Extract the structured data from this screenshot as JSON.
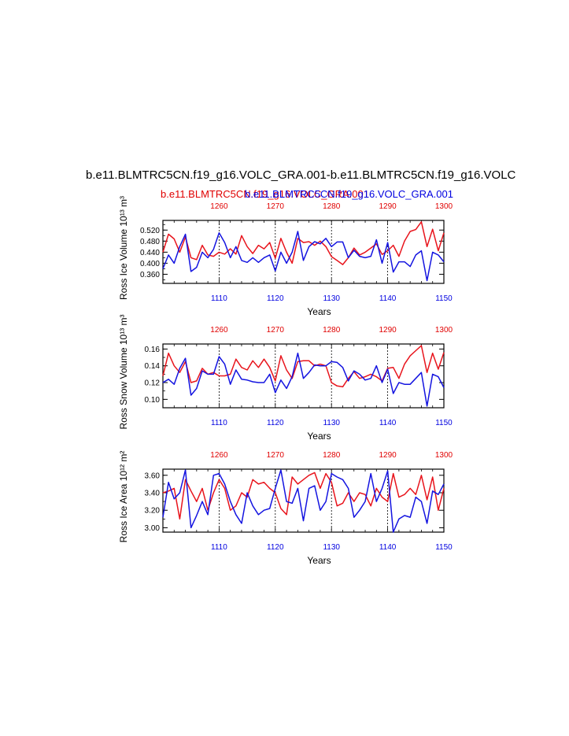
{
  "titles": {
    "main": "b.e11.BLMTRC5CN.f19_g16.VOLC_GRA.001-b.e11.BLMTRC5CN.f19_g16.VOLC",
    "left": "b.e11.BLMTRC5CN.f19_g16.VOLC_GRA.001",
    "right": "b.e11.BLMTRC5CN.f19_g16.VOLC_GRA.001"
  },
  "colors": {
    "red": "#e8141c",
    "blue": "#1414e0"
  },
  "chart_data": [
    {
      "type": "line",
      "ylabel": "Ross Ice Volume 10¹³ m³",
      "xlabel": "Years",
      "ylim": [
        0.327,
        0.555
      ],
      "yticks": [
        "0.360",
        "0.400",
        "0.440",
        "0.480",
        "0.520"
      ],
      "yticks_values": [
        0.36,
        0.4,
        0.44,
        0.48,
        0.52
      ],
      "top_axis": {
        "range": [
          1250,
          1300
        ],
        "ticks": [
          "1260",
          "1270",
          "1280",
          "1290",
          "1300"
        ]
      },
      "bottom_axis": {
        "range": [
          1100,
          1150
        ],
        "ticks": [
          "1110",
          "1120",
          "1130",
          "1140",
          "1150"
        ]
      },
      "series": [
        {
          "axis": "top",
          "color": "red",
          "x": [
            1250,
            1251,
            1252,
            1253,
            1254,
            1255,
            1256,
            1257,
            1258,
            1259,
            1260,
            1261,
            1262,
            1263,
            1264,
            1265,
            1266,
            1267,
            1268,
            1269,
            1270,
            1271,
            1272,
            1273,
            1274,
            1275,
            1276,
            1277,
            1278,
            1279,
            1280,
            1281,
            1282,
            1283,
            1284,
            1285,
            1286,
            1287,
            1288,
            1289,
            1290,
            1291,
            1292,
            1293,
            1294,
            1295,
            1296,
            1297,
            1298,
            1299,
            1300
          ],
          "y": [
            0.44,
            0.505,
            0.488,
            0.44,
            0.495,
            0.42,
            0.413,
            0.465,
            0.43,
            0.425,
            0.44,
            0.433,
            0.452,
            0.433,
            0.5,
            0.46,
            0.435,
            0.465,
            0.452,
            0.475,
            0.418,
            0.49,
            0.44,
            0.4,
            0.49,
            0.475,
            0.478,
            0.465,
            0.48,
            0.46,
            0.424,
            0.41,
            0.395,
            0.42,
            0.455,
            0.43,
            0.44,
            0.455,
            0.47,
            0.432,
            0.445,
            0.465,
            0.425,
            0.48,
            0.515,
            0.522,
            0.55,
            0.46,
            0.523,
            0.445,
            0.51
          ]
        },
        {
          "axis": "bottom",
          "color": "blue",
          "x": [
            1100,
            1101,
            1102,
            1103,
            1104,
            1105,
            1106,
            1107,
            1108,
            1109,
            1110,
            1111,
            1112,
            1113,
            1114,
            1115,
            1116,
            1117,
            1118,
            1119,
            1120,
            1121,
            1122,
            1123,
            1124,
            1125,
            1126,
            1127,
            1128,
            1129,
            1130,
            1131,
            1132,
            1133,
            1134,
            1135,
            1136,
            1137,
            1138,
            1139,
            1140,
            1141,
            1142,
            1143,
            1144,
            1145,
            1146,
            1147,
            1148,
            1149,
            1150
          ],
          "y": [
            0.38,
            0.43,
            0.4,
            0.46,
            0.505,
            0.37,
            0.385,
            0.44,
            0.42,
            0.45,
            0.51,
            0.475,
            0.42,
            0.46,
            0.41,
            0.403,
            0.42,
            0.403,
            0.42,
            0.43,
            0.372,
            0.44,
            0.4,
            0.44,
            0.515,
            0.41,
            0.46,
            0.478,
            0.47,
            0.49,
            0.46,
            0.477,
            0.477,
            0.42,
            0.447,
            0.425,
            0.42,
            0.425,
            0.485,
            0.4,
            0.475,
            0.368,
            0.405,
            0.405,
            0.388,
            0.43,
            0.445,
            0.337,
            0.44,
            0.43,
            0.405
          ]
        }
      ]
    },
    {
      "type": "line",
      "ylabel": "Ross Snow Volume 10¹³ m³",
      "xlabel": "Years",
      "ylim": [
        0.09,
        0.166
      ],
      "yticks": [
        "0.10",
        "0.12",
        "0.14",
        "0.16"
      ],
      "yticks_values": [
        0.1,
        0.12,
        0.14,
        0.16
      ],
      "top_axis": {
        "range": [
          1250,
          1300
        ],
        "ticks": [
          "1260",
          "1270",
          "1280",
          "1290",
          "1300"
        ]
      },
      "bottom_axis": {
        "range": [
          1100,
          1150
        ],
        "ticks": [
          "1110",
          "1120",
          "1130",
          "1140",
          "1150"
        ]
      },
      "series": [
        {
          "axis": "top",
          "color": "red",
          "x": [
            1250,
            1251,
            1252,
            1253,
            1254,
            1255,
            1256,
            1257,
            1258,
            1259,
            1260,
            1261,
            1262,
            1263,
            1264,
            1265,
            1266,
            1267,
            1268,
            1269,
            1270,
            1271,
            1272,
            1273,
            1274,
            1275,
            1276,
            1277,
            1278,
            1279,
            1280,
            1281,
            1282,
            1283,
            1284,
            1285,
            1286,
            1287,
            1288,
            1289,
            1290,
            1291,
            1292,
            1293,
            1294,
            1295,
            1296,
            1297,
            1298,
            1299,
            1300
          ],
          "y": [
            0.128,
            0.155,
            0.14,
            0.132,
            0.145,
            0.12,
            0.122,
            0.137,
            0.13,
            0.132,
            0.128,
            0.128,
            0.13,
            0.148,
            0.138,
            0.135,
            0.146,
            0.138,
            0.148,
            0.138,
            0.122,
            0.152,
            0.135,
            0.125,
            0.145,
            0.146,
            0.146,
            0.14,
            0.142,
            0.14,
            0.12,
            0.116,
            0.115,
            0.125,
            0.133,
            0.125,
            0.127,
            0.13,
            0.127,
            0.122,
            0.137,
            0.138,
            0.125,
            0.142,
            0.152,
            0.158,
            0.164,
            0.132,
            0.155,
            0.136,
            0.156
          ]
        },
        {
          "axis": "bottom",
          "color": "blue",
          "x": [
            1100,
            1101,
            1102,
            1103,
            1104,
            1105,
            1106,
            1107,
            1108,
            1109,
            1110,
            1111,
            1112,
            1113,
            1114,
            1115,
            1116,
            1117,
            1118,
            1119,
            1120,
            1121,
            1122,
            1123,
            1124,
            1125,
            1126,
            1127,
            1128,
            1129,
            1130,
            1131,
            1132,
            1133,
            1134,
            1135,
            1136,
            1137,
            1138,
            1139,
            1140,
            1141,
            1142,
            1143,
            1144,
            1145,
            1146,
            1147,
            1148,
            1149,
            1150
          ],
          "y": [
            0.12,
            0.124,
            0.118,
            0.137,
            0.149,
            0.105,
            0.113,
            0.134,
            0.13,
            0.13,
            0.151,
            0.142,
            0.118,
            0.135,
            0.124,
            0.123,
            0.121,
            0.12,
            0.12,
            0.13,
            0.108,
            0.123,
            0.113,
            0.127,
            0.155,
            0.125,
            0.132,
            0.141,
            0.14,
            0.14,
            0.145,
            0.144,
            0.138,
            0.122,
            0.134,
            0.13,
            0.123,
            0.125,
            0.14,
            0.12,
            0.136,
            0.107,
            0.12,
            0.118,
            0.118,
            0.125,
            0.132,
            0.092,
            0.13,
            0.127,
            0.114
          ]
        }
      ]
    },
    {
      "type": "line",
      "ylabel": "Ross Ice Area 10¹² m²",
      "xlabel": "Years",
      "ylim": [
        2.95,
        3.67
      ],
      "yticks": [
        "3.00",
        "3.20",
        "3.40",
        "3.60"
      ],
      "yticks_values": [
        3.0,
        3.2,
        3.4,
        3.6
      ],
      "top_axis": {
        "range": [
          1250,
          1300
        ],
        "ticks": [
          "1260",
          "1270",
          "1280",
          "1290",
          "1300"
        ]
      },
      "bottom_axis": {
        "range": [
          1100,
          1150
        ],
        "ticks": [
          "1110",
          "1120",
          "1130",
          "1140",
          "1150"
        ]
      },
      "series": [
        {
          "axis": "top",
          "color": "red",
          "x": [
            1250,
            1251,
            1252,
            1253,
            1254,
            1255,
            1256,
            1257,
            1258,
            1259,
            1260,
            1261,
            1262,
            1263,
            1264,
            1265,
            1266,
            1267,
            1268,
            1269,
            1270,
            1271,
            1272,
            1273,
            1274,
            1275,
            1276,
            1277,
            1278,
            1279,
            1280,
            1281,
            1282,
            1283,
            1284,
            1285,
            1286,
            1287,
            1288,
            1289,
            1290,
            1291,
            1292,
            1293,
            1294,
            1295,
            1296,
            1297,
            1298,
            1299,
            1300
          ],
          "y": [
            3.4,
            3.42,
            3.45,
            3.1,
            3.55,
            3.42,
            3.3,
            3.45,
            3.2,
            3.4,
            3.55,
            3.45,
            3.2,
            3.25,
            3.4,
            3.35,
            3.55,
            3.5,
            3.52,
            3.45,
            3.4,
            3.22,
            3.15,
            3.58,
            3.5,
            3.55,
            3.6,
            3.63,
            3.45,
            3.62,
            3.52,
            3.25,
            3.28,
            3.4,
            3.3,
            3.4,
            3.38,
            3.25,
            3.45,
            3.35,
            3.3,
            3.62,
            3.35,
            3.38,
            3.45,
            3.38,
            3.6,
            3.32,
            3.58,
            3.2,
            3.45
          ]
        },
        {
          "axis": "bottom",
          "color": "blue",
          "x": [
            1100,
            1101,
            1102,
            1103,
            1104,
            1105,
            1106,
            1107,
            1108,
            1109,
            1110,
            1111,
            1112,
            1113,
            1114,
            1115,
            1116,
            1117,
            1118,
            1119,
            1120,
            1121,
            1122,
            1123,
            1124,
            1125,
            1126,
            1127,
            1128,
            1129,
            1130,
            1131,
            1132,
            1133,
            1134,
            1135,
            1136,
            1137,
            1138,
            1139,
            1140,
            1141,
            1142,
            1143,
            1144,
            1145,
            1146,
            1147,
            1148,
            1149,
            1150
          ],
          "y": [
            3.12,
            3.52,
            3.33,
            3.4,
            3.66,
            3.0,
            3.14,
            3.3,
            3.15,
            3.6,
            3.62,
            3.5,
            3.3,
            3.15,
            3.05,
            3.4,
            3.25,
            3.15,
            3.2,
            3.22,
            3.45,
            3.66,
            3.3,
            3.28,
            3.45,
            3.08,
            3.45,
            3.48,
            3.2,
            3.3,
            3.62,
            3.58,
            3.55,
            3.45,
            3.12,
            3.2,
            3.3,
            3.62,
            3.3,
            3.45,
            3.65,
            2.95,
            3.1,
            3.14,
            3.12,
            3.35,
            3.3,
            3.05,
            3.42,
            3.38,
            3.5
          ]
        }
      ]
    }
  ]
}
